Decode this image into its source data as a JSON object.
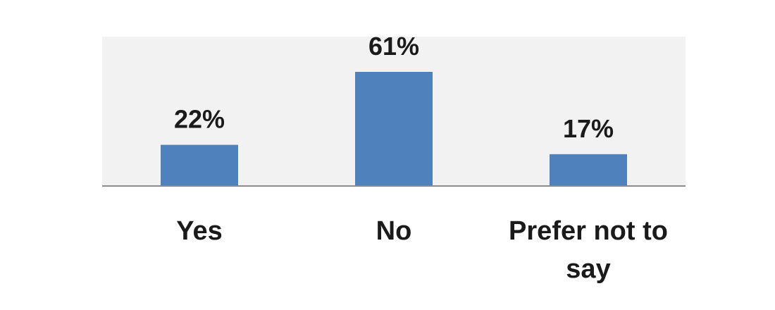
{
  "chart_data": {
    "type": "bar",
    "categories": [
      "Yes",
      "No",
      "Prefer not to say"
    ],
    "category_lines": [
      [
        "Yes"
      ],
      [
        "No"
      ],
      [
        "Prefer not to",
        "say"
      ]
    ],
    "values": [
      22,
      61,
      17
    ],
    "value_labels": [
      "22%",
      "61%",
      "17%"
    ],
    "unit": "%",
    "ylim": [
      0,
      70
    ],
    "grid": false,
    "legend": "none",
    "title": "",
    "xlabel": "",
    "ylabel": "",
    "colors": {
      "bar": "#4f81bd",
      "plot_background": "#f2f2f2",
      "axis_line": "#8c8c8c",
      "text": "#1a1a1a"
    }
  }
}
